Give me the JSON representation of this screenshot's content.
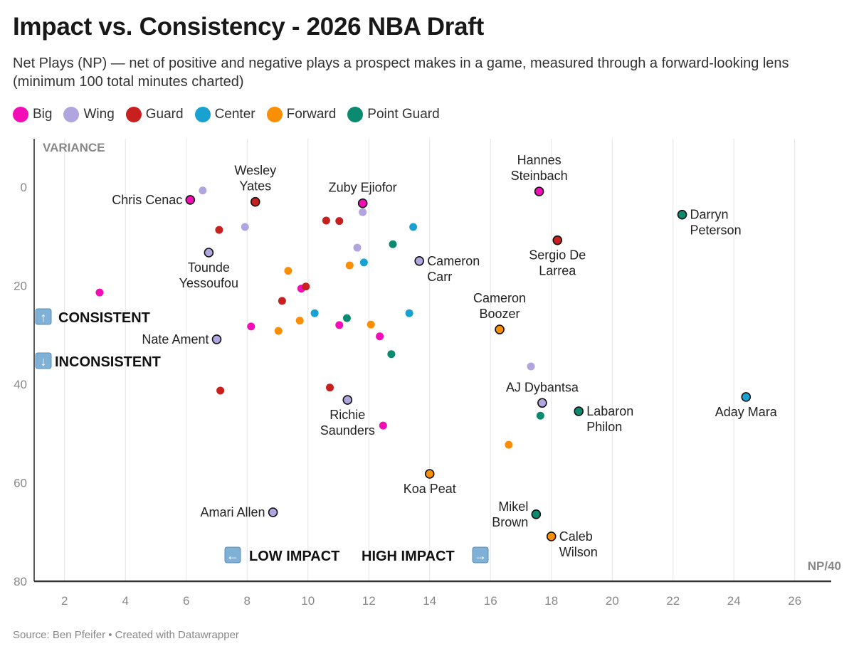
{
  "title": "Impact vs. Consistency - 2026 NBA Draft",
  "subtitle": "Net Plays (NP) — net of positive and negative plays a prospect makes in a game, measured through a forward-looking lens (minimum 100 total minutes charted)",
  "source": "Source: Ben Pfeifer • Created with Datawrapper",
  "chart_data": {
    "type": "scatter",
    "title": "Impact vs. Consistency - 2026 NBA Draft",
    "xlabel": "NP/40",
    "ylabel": "VARIANCE",
    "xlim": [
      1,
      27.2
    ],
    "ylim": [
      -9.8,
      80
    ],
    "y_inverted": true,
    "x_ticks": [
      2,
      4,
      6,
      8,
      10,
      12,
      14,
      16,
      18,
      20,
      22,
      24,
      26
    ],
    "y_ticks": [
      0,
      20,
      40,
      60,
      80
    ],
    "grid": "vertical",
    "legend_position": "top-left",
    "legend": [
      {
        "name": "Big",
        "color": "#f20db6"
      },
      {
        "name": "Wing",
        "color": "#b1a5e0"
      },
      {
        "name": "Guard",
        "color": "#c81f1f"
      },
      {
        "name": "Center",
        "color": "#19a2d1"
      },
      {
        "name": "Forward",
        "color": "#fa8e05"
      },
      {
        "name": "Point Guard",
        "color": "#0a8a6e"
      }
    ],
    "annotations": [
      {
        "text": "CONSISTENT",
        "icon": "arrow-up-icon"
      },
      {
        "text": "INCONSISTENT",
        "icon": "arrow-down-icon"
      },
      {
        "text": "LOW IMPACT",
        "icon": "arrow-left-icon"
      },
      {
        "text": "HIGH IMPACT",
        "icon": "arrow-right-icon"
      }
    ],
    "points": [
      {
        "label": "Chris Cenac",
        "pos": "Big",
        "x": 6.13,
        "y": 2.6,
        "anchor": "left"
      },
      {
        "label": "Wesley\nYates",
        "pos": "Guard",
        "x": 8.27,
        "y": 3.0,
        "anchor": "above"
      },
      {
        "label": "Zuby Ejiofor",
        "pos": "Big",
        "x": 11.8,
        "y": 3.3,
        "anchor": "above"
      },
      {
        "label": "Hannes\nSteinbach",
        "pos": "Big",
        "x": 17.6,
        "y": 0.9,
        "anchor": "above"
      },
      {
        "label": "Darryn\nPeterson",
        "pos": "Point Guard",
        "x": 22.3,
        "y": 5.6,
        "anchor": "right"
      },
      {
        "label": "Sergio De\nLarrea",
        "pos": "Guard",
        "x": 18.2,
        "y": 10.8,
        "anchor": "below"
      },
      {
        "label": "Tounde\nYessoufou",
        "pos": "Wing",
        "x": 6.74,
        "y": 13.3,
        "anchor": "below"
      },
      {
        "label": "Cameron\nCarr",
        "pos": "Wing",
        "x": 13.66,
        "y": 15.0,
        "anchor": "right"
      },
      {
        "label": "Cameron\nBoozer",
        "pos": "Forward",
        "x": 16.3,
        "y": 28.9,
        "anchor": "above"
      },
      {
        "label": "Nate Ament",
        "pos": "Wing",
        "x": 7.0,
        "y": 30.9,
        "anchor": "left"
      },
      {
        "label": "AJ Dybantsa",
        "pos": "Wing",
        "x": 17.7,
        "y": 43.8,
        "anchor": "above"
      },
      {
        "label": "Labaron\nPhilon",
        "pos": "Point Guard",
        "x": 18.9,
        "y": 45.5,
        "anchor": "right"
      },
      {
        "label": "Aday Mara",
        "pos": "Center",
        "x": 24.4,
        "y": 42.6,
        "anchor": "below"
      },
      {
        "label": "Richie\nSaunders",
        "pos": "Wing",
        "x": 11.3,
        "y": 43.2,
        "anchor": "below"
      },
      {
        "label": "Koa Peat",
        "pos": "Forward",
        "x": 14.0,
        "y": 58.2,
        "anchor": "below"
      },
      {
        "label": "Amari Allen",
        "pos": "Wing",
        "x": 8.85,
        "y": 66.0,
        "anchor": "left"
      },
      {
        "label": "Mikel\nBrown",
        "pos": "Point Guard",
        "x": 17.5,
        "y": 66.4,
        "anchor": "left"
      },
      {
        "label": "Caleb\nWilson",
        "pos": "Forward",
        "x": 18.0,
        "y": 70.9,
        "anchor": "right"
      },
      {
        "pos": "Wing",
        "x": 6.54,
        "y": 0.7
      },
      {
        "pos": "Wing",
        "x": 11.8,
        "y": 5.1
      },
      {
        "pos": "Wing",
        "x": 7.93,
        "y": 8.1
      },
      {
        "pos": "Guard",
        "x": 7.08,
        "y": 8.7
      },
      {
        "pos": "Guard",
        "x": 10.6,
        "y": 6.8
      },
      {
        "pos": "Guard",
        "x": 11.03,
        "y": 6.9
      },
      {
        "pos": "Center",
        "x": 13.46,
        "y": 8.1
      },
      {
        "pos": "Point Guard",
        "x": 12.79,
        "y": 11.6
      },
      {
        "pos": "Wing",
        "x": 11.62,
        "y": 12.3
      },
      {
        "pos": "Center",
        "x": 11.84,
        "y": 15.3
      },
      {
        "pos": "Forward",
        "x": 11.37,
        "y": 15.9
      },
      {
        "pos": "Forward",
        "x": 9.35,
        "y": 17.0
      },
      {
        "pos": "Big",
        "x": 3.15,
        "y": 21.4
      },
      {
        "pos": "Big",
        "x": 9.78,
        "y": 20.6
      },
      {
        "pos": "Guard",
        "x": 9.93,
        "y": 20.2
      },
      {
        "pos": "Guard",
        "x": 9.15,
        "y": 23.1
      },
      {
        "pos": "Center",
        "x": 10.22,
        "y": 25.6
      },
      {
        "pos": "Center",
        "x": 13.33,
        "y": 25.6
      },
      {
        "pos": "Point Guard",
        "x": 11.28,
        "y": 26.6
      },
      {
        "pos": "Forward",
        "x": 9.73,
        "y": 27.1
      },
      {
        "pos": "Forward",
        "x": 12.07,
        "y": 27.9
      },
      {
        "pos": "Big",
        "x": 11.03,
        "y": 28.0
      },
      {
        "pos": "Big",
        "x": 8.13,
        "y": 28.3
      },
      {
        "pos": "Forward",
        "x": 9.03,
        "y": 29.2
      },
      {
        "pos": "Big",
        "x": 12.36,
        "y": 30.3
      },
      {
        "pos": "Point Guard",
        "x": 12.74,
        "y": 33.9
      },
      {
        "pos": "Wing",
        "x": 17.33,
        "y": 36.4
      },
      {
        "pos": "Guard",
        "x": 7.12,
        "y": 41.3
      },
      {
        "pos": "Guard",
        "x": 10.72,
        "y": 40.7
      },
      {
        "pos": "Point Guard",
        "x": 17.64,
        "y": 46.4
      },
      {
        "pos": "Big",
        "x": 12.47,
        "y": 48.4
      },
      {
        "pos": "Forward",
        "x": 16.6,
        "y": 52.3
      }
    ]
  }
}
